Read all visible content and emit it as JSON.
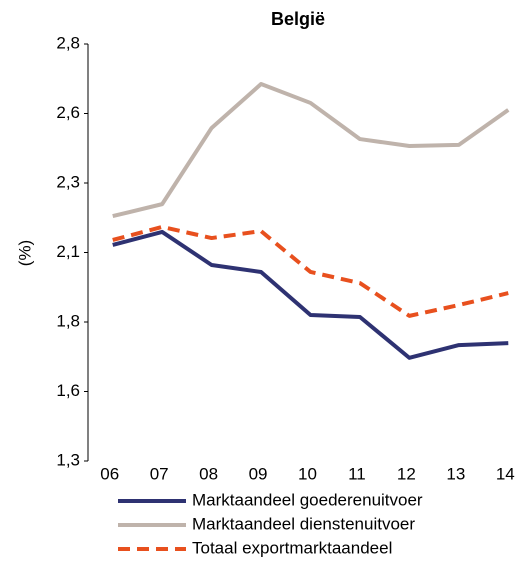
{
  "chart_data": {
    "type": "line",
    "title": "België",
    "y_label": "(%)",
    "categories": [
      "06",
      "07",
      "08",
      "09",
      "10",
      "11",
      "12",
      "13",
      "14"
    ],
    "series": [
      {
        "name": "Marktaandeel goederenuitvoer",
        "color": "#2e3272",
        "dash": false,
        "values": [
          2.077,
          2.124,
          2.005,
          1.98,
          1.825,
          1.818,
          1.671,
          1.717,
          1.724
        ]
      },
      {
        "name": "Marktaandeel dienstenuitvoer",
        "color": "#bfb3ab",
        "dash": false,
        "values": [
          2.181,
          2.224,
          2.498,
          2.656,
          2.588,
          2.458,
          2.433,
          2.437,
          2.563
        ]
      },
      {
        "name": "Totaal exportmarktaandeel",
        "color": "#e8501e",
        "dash": true,
        "values": [
          2.095,
          2.142,
          2.102,
          2.127,
          1.98,
          1.94,
          1.822,
          1.861,
          1.904
        ]
      }
    ],
    "ylim": [
      1.3,
      2.8
    ],
    "yticks": [
      {
        "value": 1.3,
        "label": "1,3"
      },
      {
        "value": 1.55,
        "label": "1,6"
      },
      {
        "value": 1.8,
        "label": "1,8"
      },
      {
        "value": 2.05,
        "label": "2,1"
      },
      {
        "value": 2.3,
        "label": "2,3"
      },
      {
        "value": 2.55,
        "label": "2,6"
      },
      {
        "value": 2.8,
        "label": "2,8"
      }
    ],
    "grid": false
  }
}
